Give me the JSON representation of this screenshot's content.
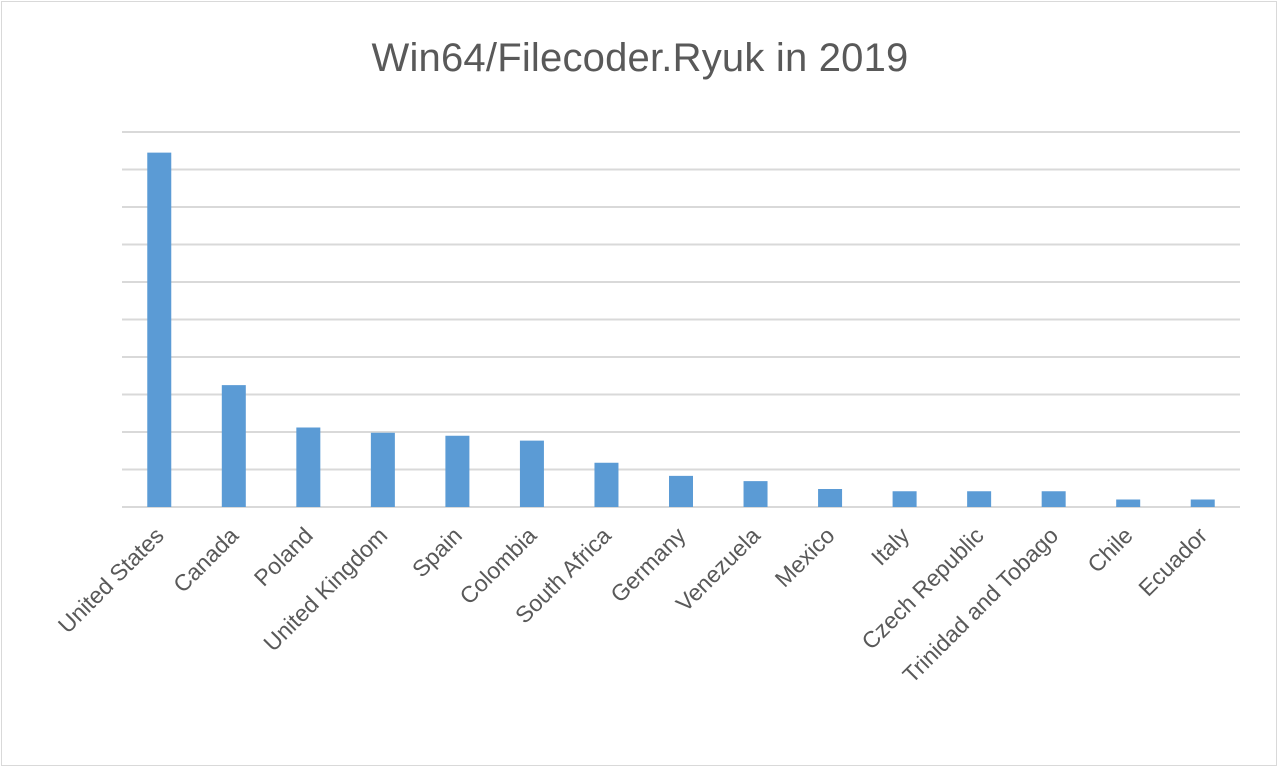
{
  "chart_data": {
    "type": "bar",
    "title": "Win64/Filecoder.Ryuk in 2019",
    "xlabel": "",
    "ylabel": "",
    "categories": [
      "United States",
      "Canada",
      "Poland",
      "United Kingdom",
      "Spain",
      "Colombia",
      "South Africa",
      "Germany",
      "Venezuela",
      "Mexico",
      "Italy",
      "Czech Republic",
      "Trinidad and Tobago",
      "Chile",
      "Ecuador"
    ],
    "values": [
      9.45,
      3.25,
      2.12,
      1.98,
      1.9,
      1.77,
      1.18,
      0.83,
      0.69,
      0.48,
      0.42,
      0.42,
      0.42,
      0.2,
      0.2
    ],
    "ylim": [
      0,
      10
    ],
    "y_tick_step": 1,
    "y_tick_labels_visible": false,
    "grid": true,
    "bar_color": "#5b9bd5",
    "grid_color": "#d9d9d9",
    "text_color": "#595959"
  }
}
